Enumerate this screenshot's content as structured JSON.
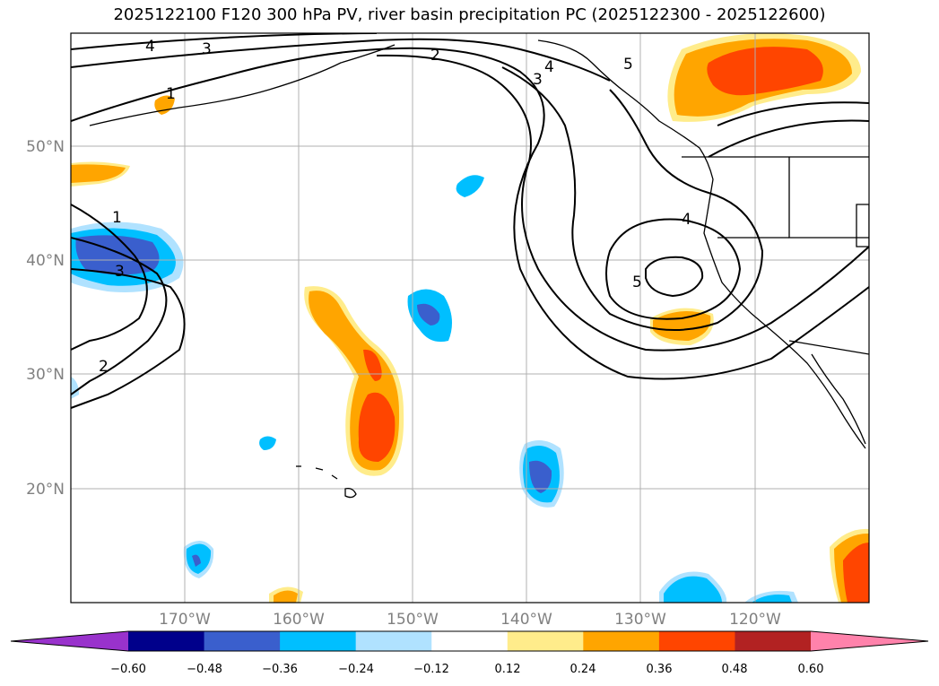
{
  "title": "2025122100 F120 300 hPa PV, river basin precipitation PC (2025122300 - 2025122600)",
  "map": {
    "lat_labels": [
      "50°N",
      "40°N",
      "30°N",
      "20°N"
    ],
    "lon_labels": [
      "170°W",
      "160°W",
      "150°W",
      "140°W",
      "130°W",
      "120°W"
    ],
    "contour_labels": [
      "4",
      "3",
      "2",
      "1",
      "1",
      "3",
      "2",
      "4",
      "3",
      "5",
      "4",
      "5"
    ]
  },
  "colorbar": {
    "ticks": [
      "−0.60",
      "−0.48",
      "−0.36",
      "−0.24",
      "−0.12",
      "0.12",
      "0.24",
      "0.36",
      "0.48",
      "0.60"
    ],
    "colors": [
      "#9932CC",
      "#00008B",
      "#3A5FCD",
      "#00BFFF",
      "#B0E2FF",
      "#FFFFFF",
      "#FFEC8B",
      "#FFA500",
      "#FF4500",
      "#B22222",
      "#FF82AB"
    ]
  }
}
